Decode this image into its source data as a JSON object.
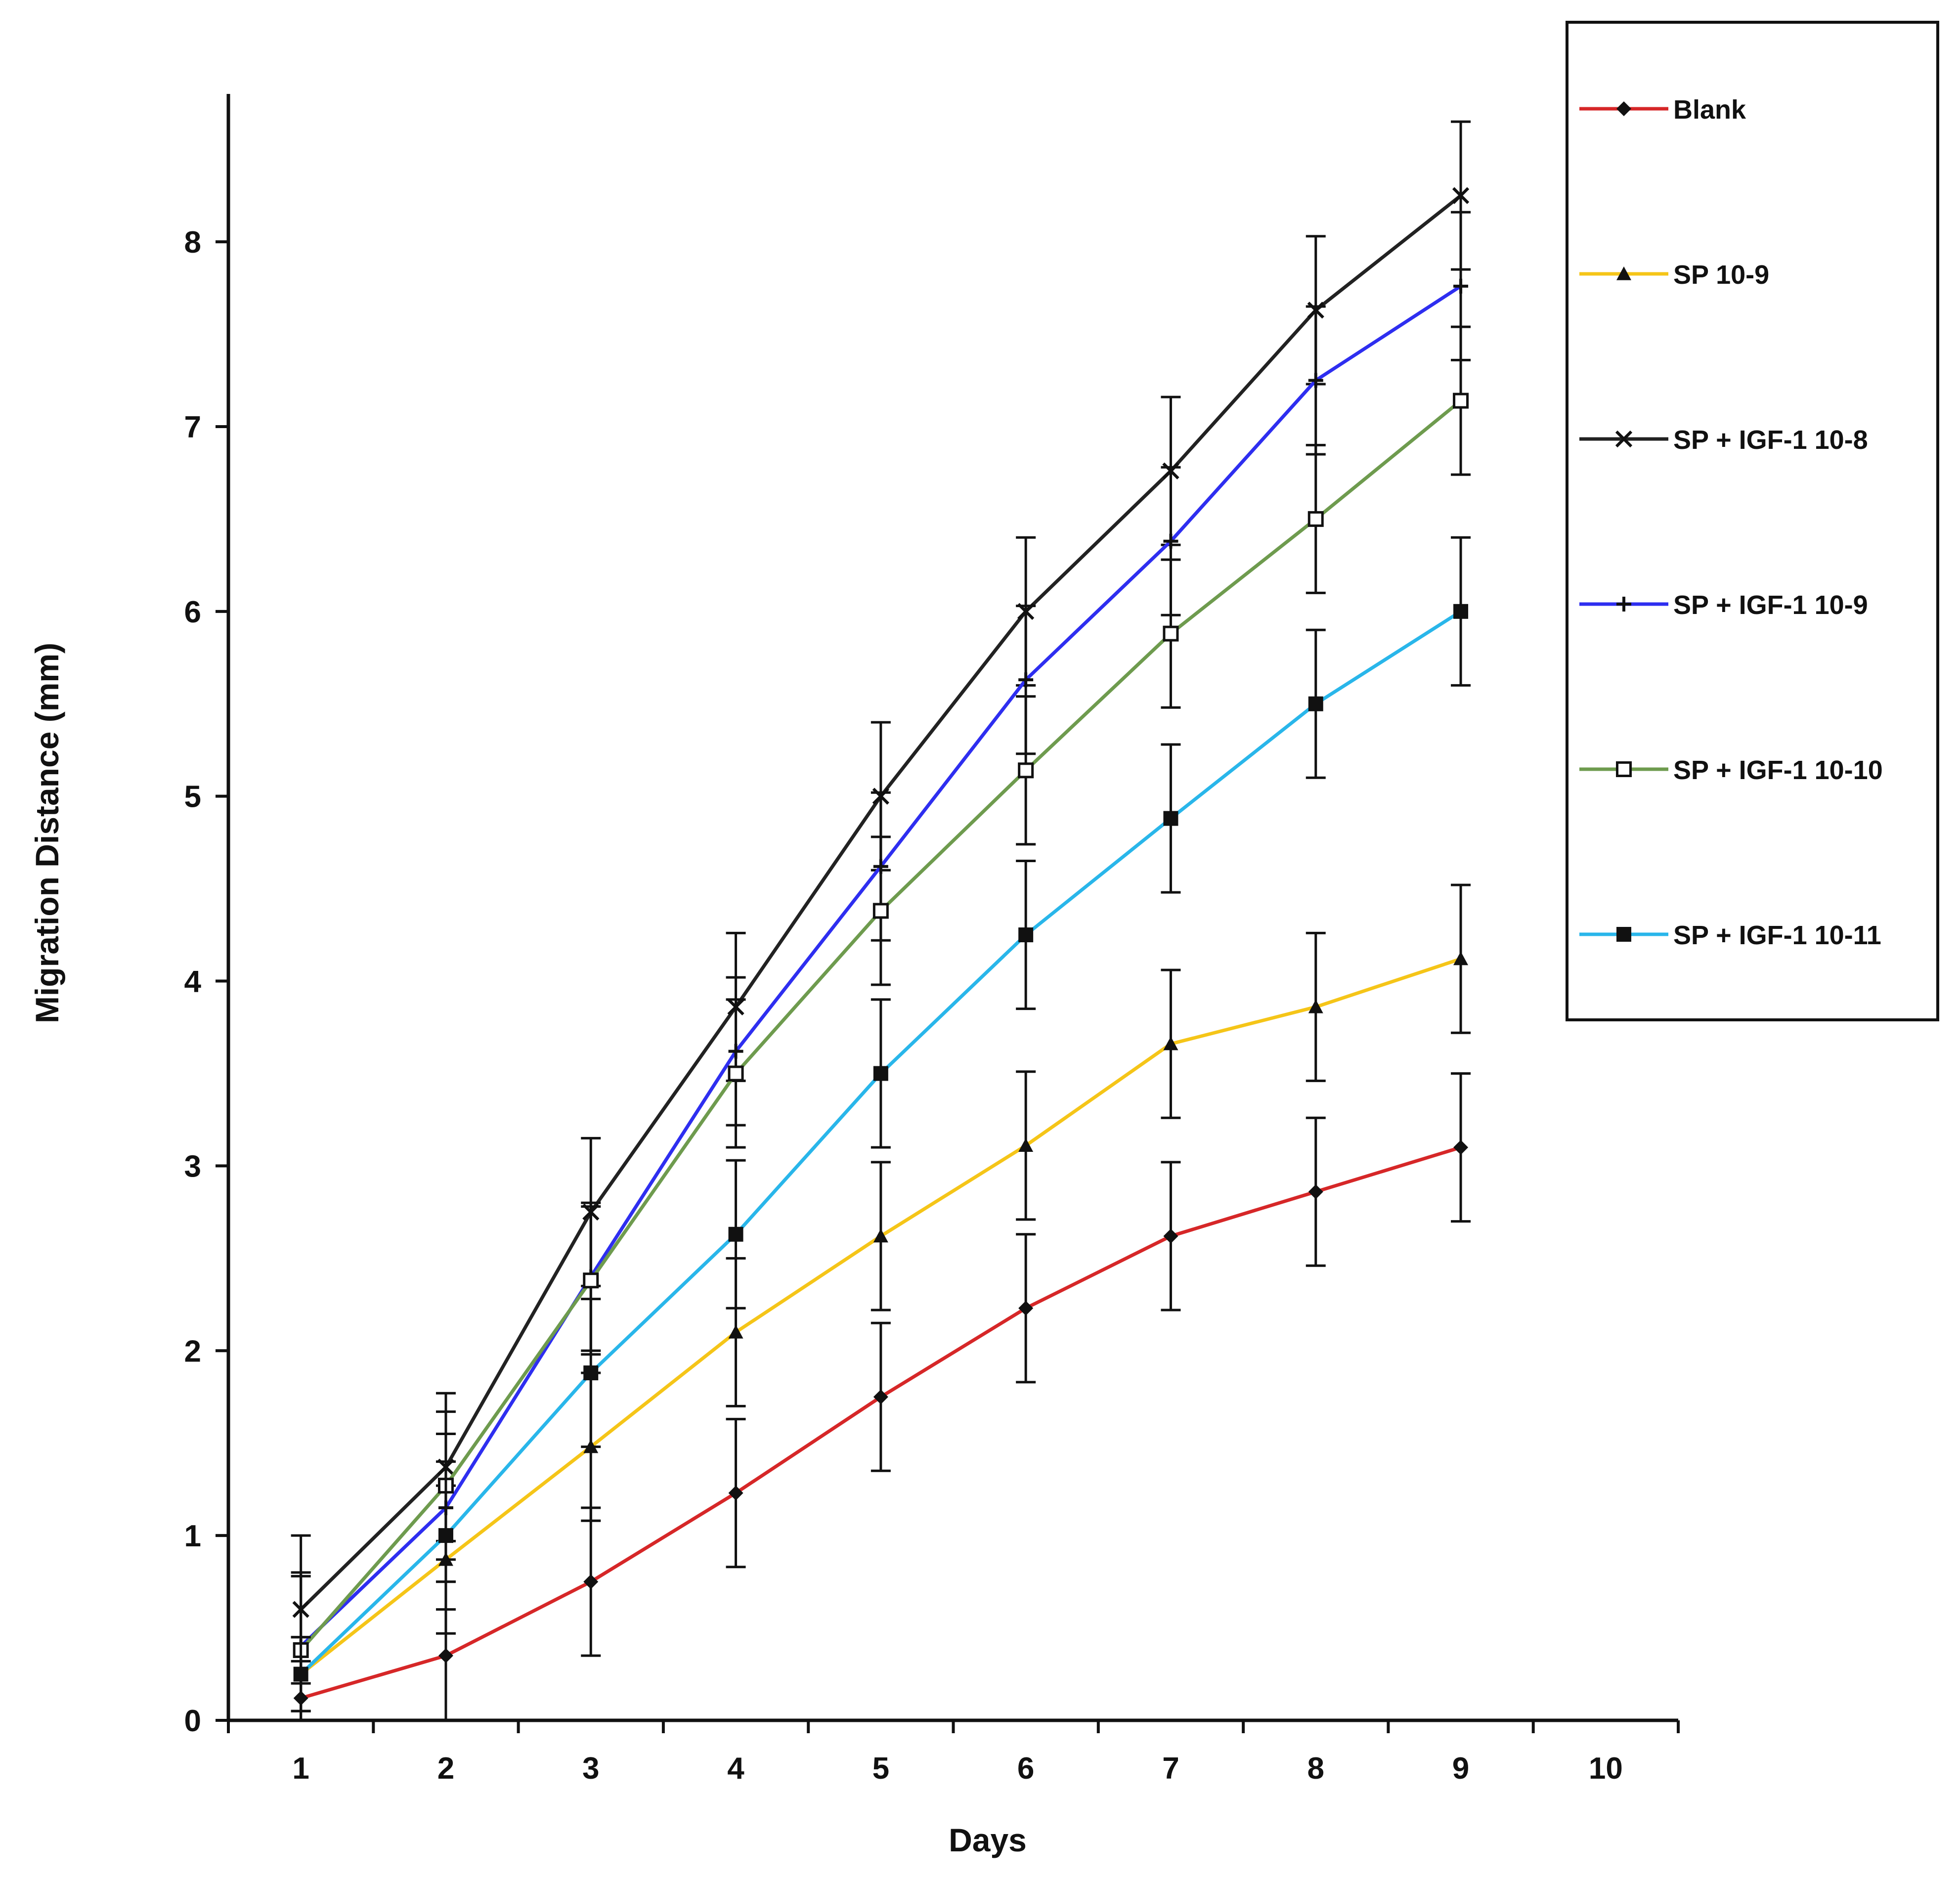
{
  "chart_data": {
    "type": "line",
    "title": "",
    "xlabel": "Days",
    "ylabel": "Migration Distance (mm)",
    "xlim": [
      0.5,
      10.5
    ],
    "ylim": [
      0,
      8.8
    ],
    "x_ticks": [
      1,
      2,
      3,
      4,
      5,
      6,
      7,
      8,
      9,
      10
    ],
    "y_ticks": [
      0,
      1,
      2,
      3,
      4,
      5,
      6,
      7,
      8
    ],
    "grid": false,
    "legend_position": "top-right",
    "x": [
      1,
      2,
      3,
      4,
      5,
      6,
      7,
      8,
      9
    ],
    "series": [
      {
        "name": "Blank",
        "color": "#d62728",
        "marker": "diamond",
        "values": [
          0.12,
          0.35,
          0.75,
          1.23,
          1.75,
          2.23,
          2.62,
          2.86,
          3.1
        ],
        "error": [
          0.2,
          0.4,
          0.4,
          0.4,
          0.4,
          0.4,
          0.4,
          0.4,
          0.4
        ]
      },
      {
        "name": "SP 10-9",
        "color": "#f5c518",
        "marker": "triangle",
        "values": [
          0.25,
          0.87,
          1.48,
          2.1,
          2.62,
          3.11,
          3.66,
          3.86,
          4.12
        ],
        "error": [
          0.2,
          0.4,
          0.4,
          0.4,
          0.4,
          0.4,
          0.4,
          0.4,
          0.4
        ]
      },
      {
        "name": "SP + IGF-1 10-8",
        "color": "#222222",
        "marker": "x",
        "values": [
          0.6,
          1.37,
          2.75,
          3.86,
          5.0,
          6.0,
          6.76,
          7.63,
          8.25
        ],
        "error": [
          0.4,
          0.4,
          0.4,
          0.4,
          0.4,
          0.4,
          0.4,
          0.4,
          0.4
        ]
      },
      {
        "name": "SP + IGF-1 10-9",
        "color": "#2e2ef0",
        "marker": "plus",
        "values": [
          0.4,
          1.15,
          2.4,
          3.62,
          4.62,
          5.63,
          6.38,
          7.25,
          7.76
        ],
        "error": [
          0.4,
          0.4,
          0.4,
          0.4,
          0.4,
          0.4,
          0.4,
          0.4,
          0.4
        ]
      },
      {
        "name": "SP + IGF-1 10-10",
        "color": "#6e9b4e",
        "marker": "square-open",
        "values": [
          0.38,
          1.27,
          2.38,
          3.5,
          4.38,
          5.14,
          5.88,
          6.5,
          7.14
        ],
        "error": [
          0.4,
          0.4,
          0.4,
          0.4,
          0.4,
          0.4,
          0.4,
          0.4,
          0.4
        ]
      },
      {
        "name": "SP + IGF-1 10-11",
        "color": "#29b6ea",
        "marker": "square-filled",
        "values": [
          0.25,
          1.0,
          1.88,
          2.63,
          3.5,
          4.25,
          4.88,
          5.5,
          6.0
        ],
        "error": [
          0.2,
          0.4,
          0.4,
          0.4,
          0.4,
          0.4,
          0.4,
          0.4,
          0.4
        ]
      }
    ]
  }
}
